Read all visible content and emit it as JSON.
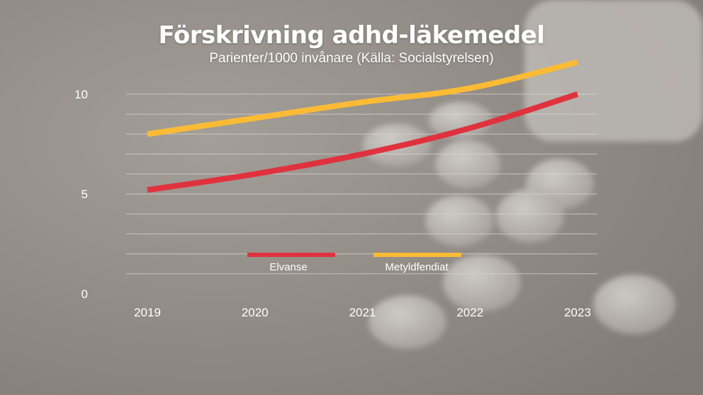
{
  "header": {
    "title": "Förskrivning adhd-läkemedel",
    "subtitle": "Parienter/1000 invånare (Källa: Socialstyrelsen)"
  },
  "colors": {
    "background": "#8f8a84",
    "gridline": "#d8d4cf",
    "elvanse": "#e0323e",
    "metyldfendiat": "#fcbb35",
    "text": "#ffffff"
  },
  "chart_data": {
    "type": "line",
    "title": "Förskrivning adhd-läkemedel",
    "subtitle": "Parienter/1000 invånare (Källa: Socialstyrelsen)",
    "x": [
      2019,
      2020,
      2021,
      2022,
      2023
    ],
    "x_tick_labels": [
      "2019",
      "2020",
      "2021",
      "2022",
      "2023"
    ],
    "y_ticks": [
      0,
      5,
      10
    ],
    "y_tick_labels": [
      "0",
      "5",
      "10"
    ],
    "ylim": [
      0,
      10
    ],
    "grid": true,
    "legend_position": "center",
    "series": [
      {
        "name": "Elvanse",
        "color": "#e0323e",
        "values": [
          5.2,
          6.0,
          7.0,
          8.3,
          10.0
        ]
      },
      {
        "name": "Metyldfendiat",
        "color": "#fcbb35",
        "values": [
          8.0,
          8.8,
          9.6,
          10.3,
          11.6
        ]
      }
    ]
  }
}
